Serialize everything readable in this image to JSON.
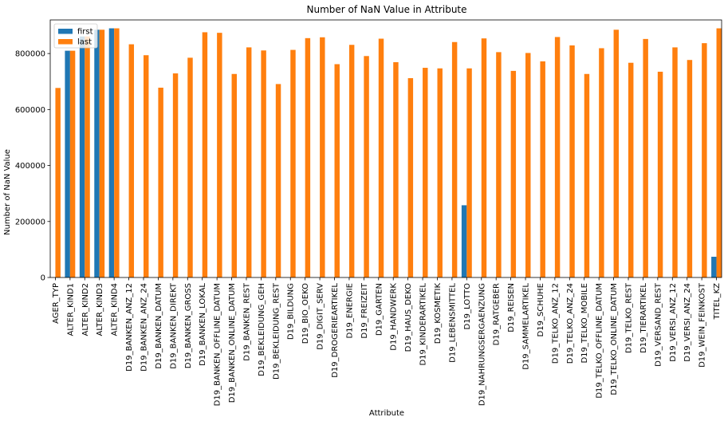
{
  "chart_data": {
    "type": "bar",
    "title": "Number of NaN Value in Attribute",
    "xlabel": "Attribute",
    "ylabel": "Number of NaN Value",
    "ylim": [
      0,
      920000
    ],
    "yticks": [
      0,
      200000,
      400000,
      600000,
      800000
    ],
    "ytick_labels": [
      "0",
      "200000",
      "400000",
      "600000",
      "800000"
    ],
    "grid": false,
    "legend": "top-left",
    "categories": [
      "AGER_TYP",
      "ALTER_KIND1",
      "ALTER_KIND2",
      "ALTER_KIND3",
      "ALTER_KIND4",
      "D19_BANKEN_ANZ_12",
      "D19_BANKEN_ANZ_24",
      "D19_BANKEN_DATUM",
      "D19_BANKEN_DIREKT",
      "D19_BANKEN_GROSS",
      "D19_BANKEN_LOKAL",
      "D19_BANKEN_OFFLINE_DATUM",
      "D19_BANKEN_ONLINE_DATUM",
      "D19_BANKEN_REST",
      "D19_BEKLEIDUNG_GEH",
      "D19_BEKLEIDUNG_REST",
      "D19_BILDUNG",
      "D19_BIO_OEKO",
      "D19_DIGIT_SERV",
      "D19_DROGERIEARTIKEL",
      "D19_ENERGIE",
      "D19_FREIZEIT",
      "D19_GARTEN",
      "D19_HANDWERK",
      "D19_HAUS_DEKO",
      "D19_KINDERARTIKEL",
      "D19_KOSMETIK",
      "D19_LEBENSMITTEL",
      "D19_LOTTO",
      "D19_NAHRUNGSERGAENZUNG",
      "D19_RATGEBER",
      "D19_REISEN",
      "D19_SAMMELARTIKEL",
      "D19_SCHUHE",
      "D19_TELKO_ANZ_12",
      "D19_TELKO_ANZ_24",
      "D19_TELKO_MOBILE",
      "D19_TELKO_OFFLINE_DATUM",
      "D19_TELKO_ONLINE_DATUM",
      "D19_TELKO_REST",
      "D19_TIERARTIKEL",
      "D19_VERSAND_REST",
      "D19_VERSI_ANZ_12",
      "D19_VERSI_ANZ_24",
      "D19_WEIN_FEINKOST",
      "TITEL_KZ"
    ],
    "series": [
      {
        "name": "first",
        "color": "#1f77b4",
        "values": [
          0,
          810000,
          861000,
          885000,
          890000,
          0,
          0,
          0,
          0,
          0,
          0,
          0,
          0,
          0,
          0,
          0,
          0,
          0,
          0,
          0,
          0,
          0,
          0,
          0,
          0,
          0,
          0,
          0,
          258000,
          0,
          0,
          0,
          0,
          0,
          0,
          0,
          0,
          0,
          0,
          0,
          0,
          0,
          0,
          0,
          0,
          74000
        ]
      },
      {
        "name": "last",
        "color": "#ff7f0e",
        "values": [
          677000,
          810000,
          861000,
          885000,
          890000,
          833000,
          794000,
          678000,
          729000,
          785000,
          876000,
          874000,
          727000,
          822000,
          811000,
          691000,
          813000,
          855000,
          858000,
          762000,
          831000,
          791000,
          853000,
          769000,
          712000,
          749000,
          747000,
          841000,
          747000,
          854000,
          805000,
          738000,
          802000,
          772000,
          859000,
          829000,
          727000,
          819000,
          885000,
          767000,
          852000,
          735000,
          822000,
          777000,
          837000,
          890000
        ]
      }
    ]
  }
}
